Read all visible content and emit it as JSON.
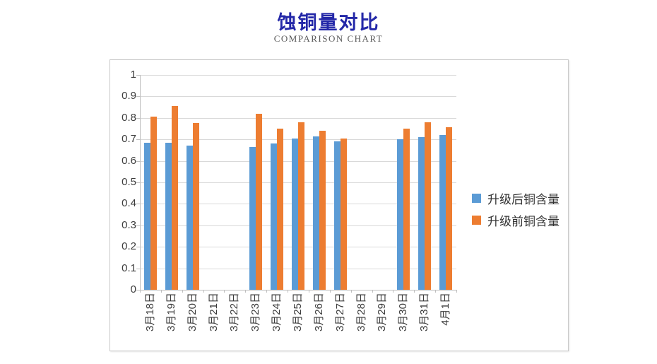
{
  "page": {
    "title": "蚀铜量对比",
    "subtitle": "COMPARISON CHART"
  },
  "colors": {
    "title": "#2428A8",
    "subtitle": "#595959",
    "gridline": "#D9D9D9",
    "axis": "#BFBFBF",
    "chart_border": "#C9C9C9",
    "tick_label": "#3B3B3B",
    "series_after_upgrade": "#5B9BD5",
    "series_before_upgrade": "#ED7D31"
  },
  "chart_data": {
    "type": "bar",
    "title": "蚀铜量对比",
    "subtitle": "COMPARISON CHART",
    "categories": [
      "3月18日",
      "3月19日",
      "3月20日",
      "3月21日",
      "3月22日",
      "3月23日",
      "3月24日",
      "3月25日",
      "3月26日",
      "3月27日",
      "3月28日",
      "3月29日",
      "3月30日",
      "3月31日",
      "4月1日"
    ],
    "series": [
      {
        "name": "升级后铜含量",
        "color": "#5B9BD5",
        "values": [
          0.685,
          0.685,
          0.67,
          null,
          null,
          0.665,
          0.68,
          0.705,
          0.715,
          0.69,
          null,
          null,
          0.7,
          0.71,
          0.72
        ]
      },
      {
        "name": "升级前铜含量",
        "color": "#ED7D31",
        "values": [
          0.805,
          0.855,
          0.775,
          null,
          null,
          0.82,
          0.75,
          0.78,
          0.74,
          0.705,
          null,
          null,
          0.75,
          0.78,
          0.755
        ]
      }
    ],
    "ylim": [
      0,
      1
    ],
    "y_tick_step": 0.1,
    "y_ticks": [
      "1",
      "0.9",
      "0.8",
      "0.7",
      "0.6",
      "0.5",
      "0.4",
      "0.3",
      "0.2",
      "0.1",
      "0"
    ],
    "grid": "horizontal",
    "legend_position": "right"
  }
}
